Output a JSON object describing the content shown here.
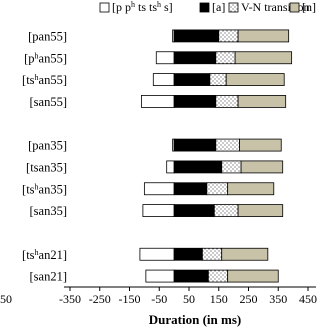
{
  "chart_data": {
    "type": "bar",
    "orientation": "horizontal",
    "stacked": true,
    "xlabel": "Duration (in ms)",
    "xlim": [
      -350,
      450
    ],
    "xticks": [
      -350,
      -250,
      -150,
      -50,
      50,
      150,
      250,
      350,
      450
    ],
    "xtick_labels": [
      "-350",
      "-250",
      "-150",
      "-50",
      "50",
      "150",
      "250",
      "350",
      "450"
    ],
    "left_edge_label": "50",
    "grid": false,
    "legend_position": "top",
    "categories": [
      "[pan55]",
      "[pʰan55]",
      "[tsʰan55]",
      "[san55]",
      "[pan35]",
      "[tsan35]",
      "[tsʰan35]",
      "[san35]",
      "[tsʰan21]",
      "[san21]"
    ],
    "category_lines": [
      [
        {
          "t": "[pan55]",
          "sup": false
        }
      ],
      [
        {
          "t": "[p",
          "sup": false
        },
        {
          "t": "h",
          "sup": true
        },
        {
          "t": "an55]",
          "sup": false
        }
      ],
      [
        {
          "t": "[ts",
          "sup": false
        },
        {
          "t": "h",
          "sup": true
        },
        {
          "t": "an55]",
          "sup": false
        }
      ],
      [
        {
          "t": "[san55]",
          "sup": false
        }
      ],
      [
        {
          "t": "[pan35]",
          "sup": false
        }
      ],
      [
        {
          "t": "[tsan35]",
          "sup": false
        }
      ],
      [
        {
          "t": "[ts",
          "sup": false
        },
        {
          "t": "h",
          "sup": true
        },
        {
          "t": "an35]",
          "sup": false
        }
      ],
      [
        {
          "t": "[san35]",
          "sup": false
        }
      ],
      [
        {
          "t": "[ts",
          "sup": false
        },
        {
          "t": "h",
          "sup": true
        },
        {
          "t": "an21]",
          "sup": false
        }
      ],
      [
        {
          "t": "[san21]",
          "sup": false
        }
      ]
    ],
    "row_slots": [
      0,
      1,
      2,
      3,
      5,
      6,
      7,
      8,
      10,
      11
    ],
    "total_slots": 12,
    "series": [
      {
        "name": "[p pʰ ts tsʰ s]",
        "legend_lines": [
          {
            "t": "[p p",
            "sup": false
          },
          {
            "t": "h",
            "sup": true
          },
          {
            "t": " ts ts",
            "sup": false
          },
          {
            "t": "h",
            "sup": true
          },
          {
            "t": " s]",
            "sup": false
          }
        ],
        "color": "#ffffff",
        "pattern": "none",
        "direction": "negative",
        "values": [
          5,
          60,
          70,
          110,
          5,
          25,
          100,
          105,
          115,
          95
        ]
      },
      {
        "name": "[a]",
        "color": "#000000",
        "pattern": "none",
        "direction": "positive",
        "values": [
          150,
          140,
          120,
          140,
          140,
          160,
          110,
          135,
          95,
          115
        ]
      },
      {
        "name": "V-N transition",
        "color": "#ffffff",
        "pattern": "dotted",
        "direction": "positive",
        "values": [
          65,
          65,
          55,
          75,
          80,
          65,
          70,
          80,
          65,
          65
        ]
      },
      {
        "name": "[n]",
        "color": "#c8c3a8",
        "pattern": "none",
        "direction": "positive",
        "values": [
          170,
          190,
          195,
          160,
          140,
          140,
          155,
          150,
          155,
          170
        ]
      }
    ]
  }
}
